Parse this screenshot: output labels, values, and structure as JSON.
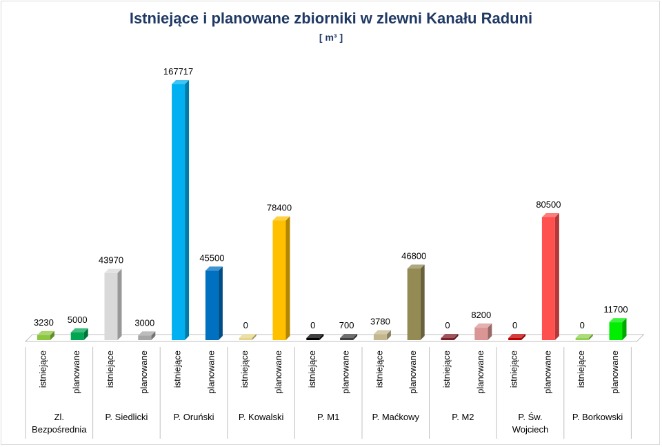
{
  "chart_data": {
    "type": "bar",
    "title": "Istniejące i planowane zbiorniki w zlewni Kanału Raduni",
    "subtitle": "[ m³ ]",
    "ylim": [
      0,
      170000
    ],
    "categories": [
      {
        "group": "Zl. Bezpośrednia",
        "group_lines": [
          "Zl.",
          "Bezpośrednia"
        ],
        "label": "istniejące",
        "value": 3230,
        "color": "#8cc63f"
      },
      {
        "group": "Zl. Bezpośrednia",
        "group_lines": [
          "Zl.",
          "Bezpośrednia"
        ],
        "label": "planowane",
        "value": 5000,
        "color": "#00a651"
      },
      {
        "group": "P. Siedlicki",
        "group_lines": [
          "P. Siedlicki"
        ],
        "label": "istniejące",
        "value": 43970,
        "color": "#d9d9d9"
      },
      {
        "group": "P. Siedlicki",
        "group_lines": [
          "P. Siedlicki"
        ],
        "label": "planowane",
        "value": 3000,
        "color": "#a6a6a6"
      },
      {
        "group": "P. Oruński",
        "group_lines": [
          "P. Oruński"
        ],
        "label": "istniejące",
        "value": 167717,
        "color": "#00b0f0"
      },
      {
        "group": "P. Oruński",
        "group_lines": [
          "P. Oruński"
        ],
        "label": "planowane",
        "value": 45500,
        "color": "#0070c0"
      },
      {
        "group": "P. Kowalski",
        "group_lines": [
          "P. Kowalski"
        ],
        "label": "istniejące",
        "value": 0,
        "color": "#e6d48a"
      },
      {
        "group": "P. Kowalski",
        "group_lines": [
          "P. Kowalski"
        ],
        "label": "planowane",
        "value": 78400,
        "color": "#ffc000"
      },
      {
        "group": "P. M1",
        "group_lines": [
          "P. M1"
        ],
        "label": "istniejące",
        "value": 0,
        "color": "#000000"
      },
      {
        "group": "P. M1",
        "group_lines": [
          "P. M1"
        ],
        "label": "planowane",
        "value": 700,
        "color": "#404040"
      },
      {
        "group": "P. Maćkowy",
        "group_lines": [
          "P. Maćkowy"
        ],
        "label": "istniejące",
        "value": 3780,
        "color": "#c4b78f"
      },
      {
        "group": "P. Maćkowy",
        "group_lines": [
          "P. Maćkowy"
        ],
        "label": "planowane",
        "value": 46800,
        "color": "#948a54"
      },
      {
        "group": "P. M2",
        "group_lines": [
          "P. M2"
        ],
        "label": "istniejące",
        "value": 0,
        "color": "#7f1f28"
      },
      {
        "group": "P. M2",
        "group_lines": [
          "P. M2"
        ],
        "label": "planowane",
        "value": 8200,
        "color": "#da9694"
      },
      {
        "group": "P. Św. Wojciech",
        "group_lines": [
          "P. Św.",
          "Wojciech"
        ],
        "label": "istniejące",
        "value": 0,
        "color": "#c00000"
      },
      {
        "group": "P. Św. Wojciech",
        "group_lines": [
          "P. Św.",
          "Wojciech"
        ],
        "label": "planowane",
        "value": 80500,
        "color": "#ff5050"
      },
      {
        "group": "P. Borkowski",
        "group_lines": [
          "P. Borkowski"
        ],
        "label": "istniejące",
        "value": 0,
        "color": "#92d050"
      },
      {
        "group": "P. Borkowski",
        "group_lines": [
          "P. Borkowski"
        ],
        "label": "planowane",
        "value": 11700,
        "color": "#00ee00"
      }
    ],
    "grid": false,
    "legend": "none"
  }
}
